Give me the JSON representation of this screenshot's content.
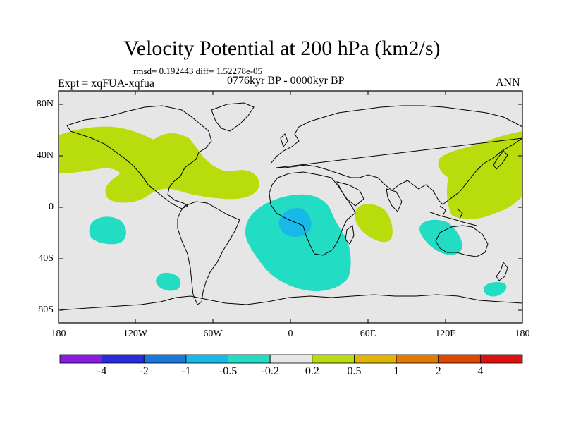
{
  "title": "Velocity Potential at 200 hPa (km2/s)",
  "stats_line": "rmsd= 0.192443 diff= 1.52278e-05",
  "left_label": "Expt = xqFUA-xqfua",
  "center_label": "0776kyr BP - 0000kyr BP",
  "right_label": "ANN",
  "lat_ticks": [
    "80N",
    "40N",
    "0",
    "40S",
    "80S"
  ],
  "lon_ticks": [
    "180",
    "120W",
    "60W",
    "0",
    "60E",
    "120E",
    "180"
  ],
  "colorbar": {
    "labels": [
      "-4",
      "-2",
      "-1",
      "-0.5",
      "-0.2",
      "0.2",
      "0.5",
      "1",
      "2",
      "4"
    ],
    "colors": [
      "#8a1be0",
      "#2a2ae0",
      "#1a78dc",
      "#18b8e8",
      "#22dcc4",
      "#e6e6e6",
      "#b8dc0c",
      "#e0b400",
      "#e07a00",
      "#e04a00",
      "#e01010"
    ]
  },
  "map_colors": {
    "background": "#e6e6e6",
    "positive": "#b8dc0c",
    "negative": "#22dcc4",
    "strong_negative": "#18b8e8",
    "coast": "#000000"
  }
}
